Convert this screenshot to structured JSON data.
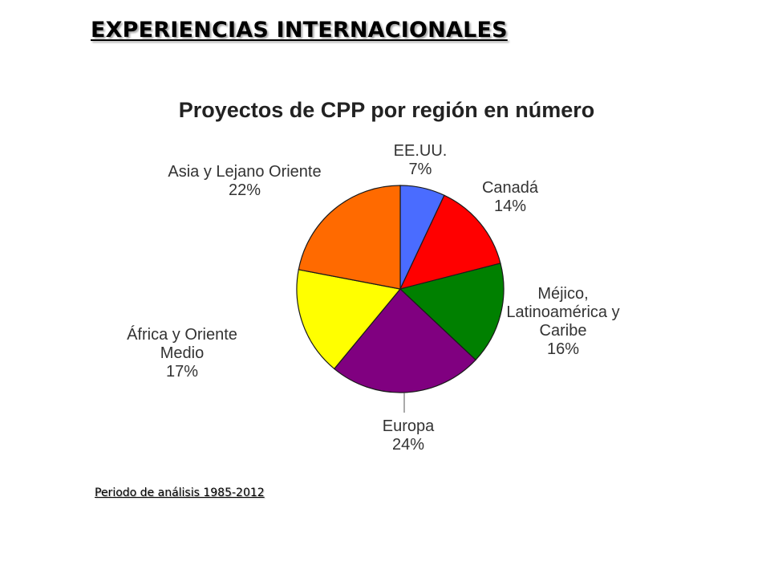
{
  "slide": {
    "title": "EXPERIENCIAS INTERNACIONALES",
    "footnote": "Periodo de análisis 1985-2012"
  },
  "chart_data": {
    "type": "pie",
    "title": "Proyectos de CPP por región en número",
    "slices": [
      {
        "name": "EE.UU.",
        "label_lines": [
          "EE.UU."
        ],
        "value": 7,
        "pct_label": "7%",
        "color": "#4a6cff"
      },
      {
        "name": "Canadá",
        "label_lines": [
          "Canadá"
        ],
        "value": 14,
        "pct_label": "14%",
        "color": "#ff0000"
      },
      {
        "name": "Méjico, Latinoamérica y Caribe",
        "label_lines": [
          "Méjico,",
          "Latinoamérica y",
          "Caribe"
        ],
        "value": 16,
        "pct_label": "16%",
        "color": "#008000"
      },
      {
        "name": "Europa",
        "label_lines": [
          "Europa"
        ],
        "value": 24,
        "pct_label": "24%",
        "color": "#800080"
      },
      {
        "name": "África y Oriente Medio",
        "label_lines": [
          "África y Oriente",
          "Medio"
        ],
        "value": 17,
        "pct_label": "17%",
        "color": "#ffff00"
      },
      {
        "name": "Asia y Lejano Oriente",
        "label_lines": [
          "Asia y Lejano Oriente"
        ],
        "value": 22,
        "pct_label": "22%",
        "color": "#ff6a00"
      }
    ]
  }
}
